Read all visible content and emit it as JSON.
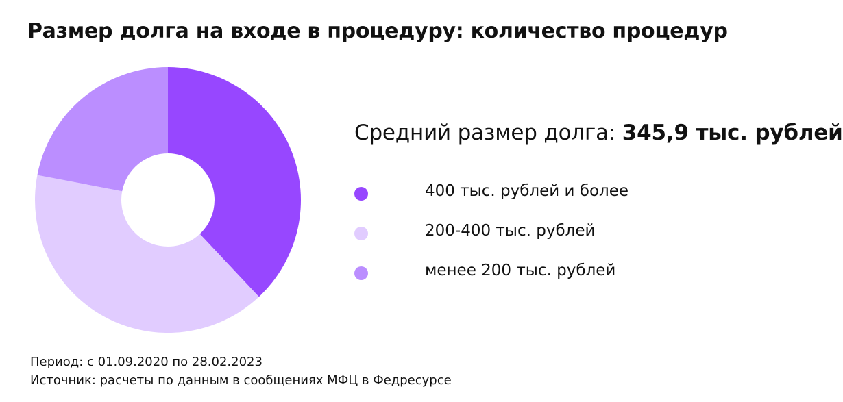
{
  "title": "Размер долга на входе в процедуру: количество процедур",
  "average": {
    "label": "Средний размер долга:",
    "value": "345,9 тыс. рублей"
  },
  "footer": {
    "period": "Период: с 01.09.2020 по 28.02.2023",
    "source": "Источник: расчеты по данным в сообщениях МФЦ в Федресурсе"
  },
  "chart_data": {
    "type": "pie",
    "donut": true,
    "start_angle_deg": 0,
    "direction": "clockwise",
    "categories": [
      "400 тыс. рублей и более",
      "200-400 тыс. рублей",
      "менее 200 тыс. рублей"
    ],
    "values": [
      38,
      40,
      22
    ],
    "colors": [
      "#9747ff",
      "#e1ccff",
      "#bb8eff"
    ],
    "legend_position": "right"
  }
}
